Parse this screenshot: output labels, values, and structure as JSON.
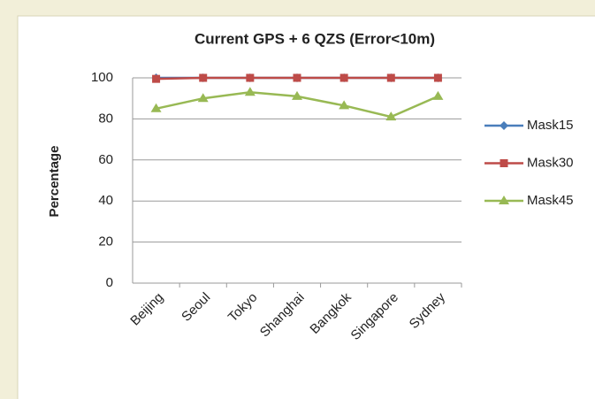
{
  "chart_data": {
    "type": "line",
    "title": "Current GPS + 6 QZS (Error<10m)",
    "ylabel": "Percentage",
    "categories": [
      "Beijing",
      "Seoul",
      "Tokyo",
      "Shanghai",
      "Bangkok",
      "Singapore",
      "Sydney"
    ],
    "series": [
      {
        "name": "Mask15",
        "color": "#4a7ebb",
        "values": [
          100,
          100,
          100,
          100,
          100,
          100,
          100
        ]
      },
      {
        "name": "Mask30",
        "color": "#be4b48",
        "values": [
          99.5,
          100,
          100,
          100,
          100,
          100,
          100
        ]
      },
      {
        "name": "Mask45",
        "color": "#98b954",
        "values": [
          85,
          90,
          93,
          91,
          86.5,
          81,
          91
        ]
      }
    ],
    "ylim": [
      0,
      100
    ],
    "yticks": [
      0,
      20,
      40,
      60,
      80,
      100
    ],
    "grid": true,
    "legend": "right"
  }
}
